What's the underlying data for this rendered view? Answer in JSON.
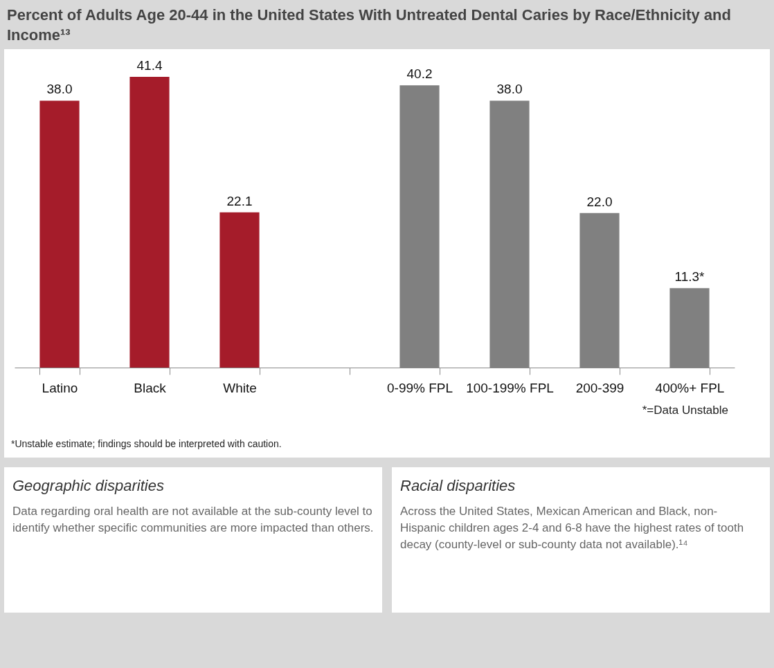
{
  "chart_data": [
    {
      "type": "bar",
      "title": "Percent of Adults Age 20-44 in the United States With Untreated Dental Caries by Race/Ethnicity and Income¹³",
      "categories": [
        "Latino",
        "Black",
        "White",
        null,
        "0-99% FPL",
        "100-199% FPL",
        "200-399",
        "400%+ FPL"
      ],
      "values": [
        38.0,
        41.4,
        22.1,
        null,
        40.2,
        38.0,
        22.0,
        11.3
      ],
      "colors": [
        "#a51c2a",
        "#a51c2a",
        "#a51c2a",
        null,
        "#808080",
        "#808080",
        "#808080",
        "#808080"
      ],
      "value_labels": [
        "38.0",
        "41.4",
        "22.1",
        null,
        "40.2",
        "38.0",
        "22.0",
        "11.3*"
      ],
      "annotations": [
        "*=Data Unstable",
        "*Unstable estimate; findings should be interpreted with caution."
      ]
    },
    {
      "type": "other",
      "title": "Geographic disparities",
      "annotations": [
        "Data regarding oral health are not available at the sub-county level to identify whether specific communities are more impacted than others."
      ]
    },
    {
      "type": "other",
      "title": "Racial disparities",
      "annotations": [
        "Across the United States, Mexican American and Black, non-Hispanic children ages 2-4 and 6-8 have the highest rates of tooth decay (county-level or sub-county data not available).¹⁴"
      ]
    }
  ]
}
